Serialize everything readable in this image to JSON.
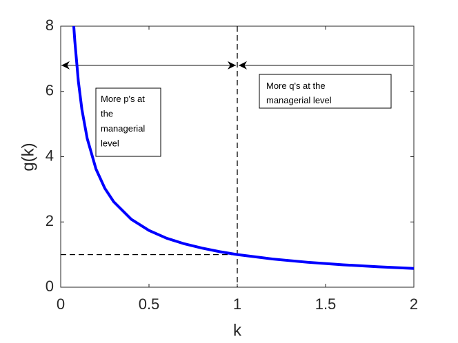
{
  "chart_data": {
    "type": "line",
    "x_label": "k",
    "y_label": "g(k)",
    "x": [
      0.074,
      0.08,
      0.1,
      0.12,
      0.15,
      0.2,
      0.25,
      0.3,
      0.4,
      0.5,
      0.6,
      0.7,
      0.8,
      0.9,
      1.0,
      1.2,
      1.4,
      1.6,
      1.8,
      2.0
    ],
    "series": [
      {
        "color": "#0000ff",
        "values": [
          8.0,
          7.54,
          6.31,
          5.45,
          4.56,
          3.62,
          3.03,
          2.62,
          2.08,
          1.74,
          1.5,
          1.33,
          1.2,
          1.09,
          1.0,
          0.864,
          0.764,
          0.687,
          0.625,
          0.574
        ]
      }
    ],
    "xlim": [
      0,
      2
    ],
    "ylim": [
      0,
      8
    ],
    "xticks": [
      0,
      0.5,
      1,
      1.5,
      2
    ],
    "yticks": [
      0,
      2,
      4,
      6,
      8
    ],
    "reference_x": 1,
    "reference_y": 1,
    "arrow_y": 6.8,
    "annotations": [
      {
        "lines": [
          "More p's at",
          "the",
          "managerial",
          "level"
        ]
      },
      {
        "lines": [
          "More q's at the",
          "managerial level"
        ]
      }
    ]
  }
}
